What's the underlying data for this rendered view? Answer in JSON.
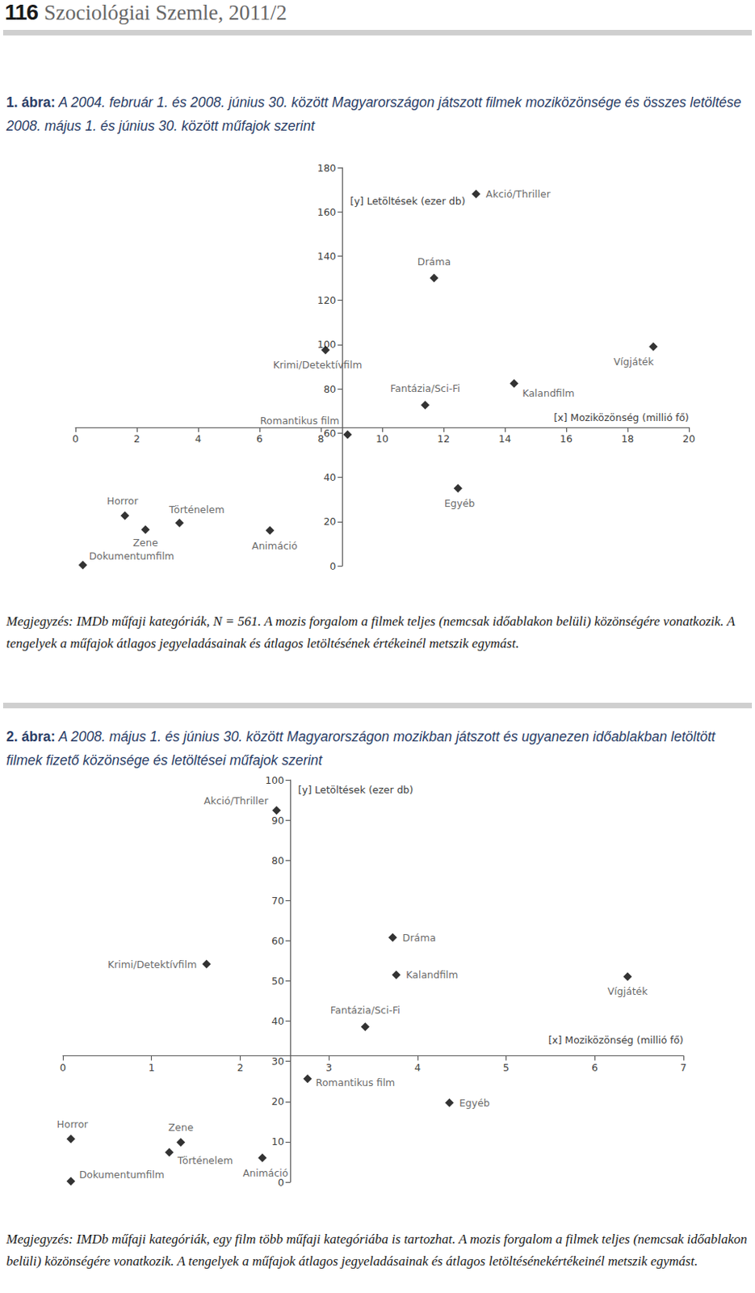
{
  "page_header": {
    "page_number": "116",
    "journal": "Szociológiai Szemle, 2011/2"
  },
  "chart_data": [
    {
      "type": "scatter",
      "title_label": "1. ábra:",
      "title": "A 2004. február 1. és 2008. június 30. között Magyarországon játszott filmek moziközönsége és összes letöltése 2008. május 1. és június 30. között műfajok szerint",
      "x_label": "[x] Moziközönség (millió fő)",
      "y_label": "[y] Letöltések (ezer db)",
      "labels": [
        "Akció/Thriller",
        "Dráma",
        "Krimi/Detektívfilm",
        "Vígjáték",
        "Kalandfilm",
        "Fantázia/Sci-Fi",
        "Romantikus film",
        "Egyéb",
        "Horror",
        "Történelem",
        "Zene",
        "Animáció",
        "Dokumentumfilm"
      ],
      "x": [
        13.06,
        11.69,
        8.15,
        18.84,
        14.3,
        11.4,
        8.87,
        12.47,
        1.61,
        3.39,
        2.28,
        6.34,
        0.24
      ],
      "values": [
        168.1,
        130.1,
        97.6,
        99.1,
        82.4,
        72.7,
        59.3,
        35.0,
        22.7,
        19.4,
        16.4,
        16.0,
        0.4
      ],
      "axes_cross": {
        "x": 8.7,
        "y": 62.6
      },
      "xlim": [
        0,
        20
      ],
      "xticks": [
        0,
        2,
        4,
        6,
        8,
        10,
        12,
        14,
        16,
        18,
        20
      ],
      "ylim": [
        0,
        180
      ],
      "yticks": [
        0,
        20,
        40,
        60,
        80,
        100,
        120,
        140,
        160,
        180
      ],
      "color": "#000000",
      "marker": "diamond",
      "grid": false,
      "note": "Megjegyzés: IMDb műfaji kategóriák, N = 561. A mozis forgalom a filmek teljes (nemcsak időablakon belüli) közönségére vonatkozik. A tengelyek a műfajok átlagos jegyeladásainak és átlagos letöltésének értékeinél metszik egymást."
    },
    {
      "type": "scatter",
      "title_label": "2. ábra:",
      "title": "A 2008. május 1. és június 30. között Magyarországon mozikban játszott és ugyanezen időablakban letöltött filmek fizető közönsége és letöltései műfajok szerint",
      "x_label": "[x] Moziközönség (millió fő)",
      "y_label": "[y] Letöltések (ezer db)",
      "labels": [
        "Akció/Thriller",
        "Dráma",
        "Krimi/Detektívfilm",
        "Kalandfilm",
        "Vígjáték",
        "Fantázia/Sci-Fi",
        "Romantikus film",
        "Egyéb",
        "Horror",
        "Zene",
        "Történelem",
        "Animáció",
        "Dokumentumfilm"
      ],
      "x": [
        2.41,
        3.72,
        1.62,
        3.76,
        6.37,
        3.41,
        2.76,
        4.36,
        0.09,
        1.33,
        1.2,
        2.25,
        0.09
      ],
      "values": [
        92.4,
        60.8,
        54.2,
        51.5,
        51.1,
        38.6,
        25.7,
        19.7,
        10.7,
        9.9,
        7.4,
        6.0,
        0.2
      ],
      "axes_cross": {
        "x": 2.565,
        "y": 31.4
      },
      "xlim": [
        0,
        7
      ],
      "xticks": [
        0,
        1,
        2,
        3,
        4,
        5,
        6,
        7
      ],
      "ylim": [
        0,
        100
      ],
      "yticks": [
        0,
        10,
        20,
        30,
        40,
        50,
        60,
        70,
        80,
        90,
        100
      ],
      "color": "#000000",
      "marker": "diamond",
      "grid": false,
      "note": "Megjegyzés: IMDb műfaji kategóriák, egy film több műfaji kategóriába is tartozhat. A mozis forgalom a filmek teljes (nemcsak időablakon belüli) közönségére vonatkozik. A tengelyek a műfajok átlagos jegyeladásainak és átlagos letöltésénekértékeinél metszik egymást."
    }
  ]
}
